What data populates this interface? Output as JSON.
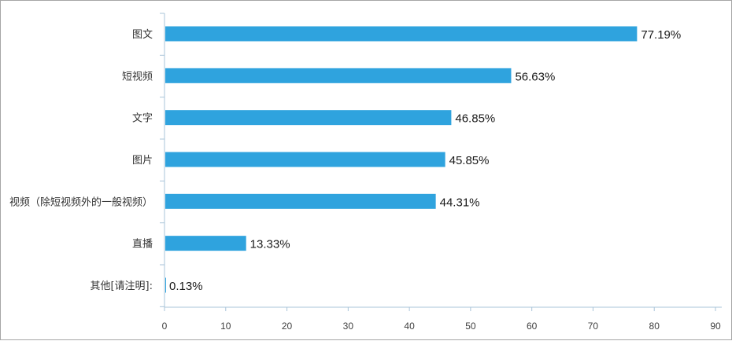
{
  "chart_data": {
    "type": "bar",
    "orientation": "horizontal",
    "title": "",
    "xlabel": "",
    "ylabel": "",
    "categories": [
      "图文",
      "短视频",
      "文字",
      "图片",
      "视频（除短视频外的一般视频）",
      "直播",
      "其他[请注明]:"
    ],
    "values": [
      77.19,
      56.63,
      46.85,
      45.85,
      44.31,
      13.33,
      0.13
    ],
    "value_labels": [
      "77.19%",
      "56.63%",
      "46.85%",
      "45.85%",
      "44.31%",
      "13.33%",
      "0.13%"
    ],
    "xlim": [
      0,
      90
    ],
    "xticks": [
      0,
      10,
      20,
      30,
      40,
      50,
      60,
      70,
      80,
      90
    ],
    "grid": false,
    "bar_color": "#2fa3de",
    "axis_color": "#a9c4d9"
  }
}
